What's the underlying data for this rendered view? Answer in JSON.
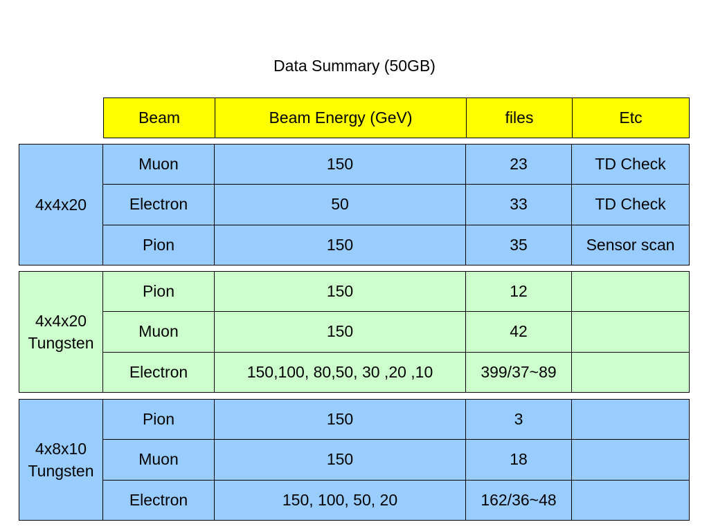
{
  "title": "Data Summary (50GB)",
  "header": [
    "Beam",
    "Beam Energy (GeV)",
    "files",
    "Etc"
  ],
  "groups": [
    {
      "label": [
        "4x4x20"
      ],
      "color": "#99ccff",
      "rows": [
        {
          "beam": "Muon",
          "energy": "150",
          "files": "23",
          "etc": "TD Check"
        },
        {
          "beam": "Electron",
          "energy": "50",
          "files": "33",
          "etc": "TD Check"
        },
        {
          "beam": "Pion",
          "energy": "150",
          "files": "35",
          "etc": "Sensor scan"
        }
      ]
    },
    {
      "label": [
        "4x4x20",
        "Tungsten"
      ],
      "color": "#ccffcc",
      "rows": [
        {
          "beam": "Pion",
          "energy": "150",
          "files": "12",
          "etc": ""
        },
        {
          "beam": "Muon",
          "energy": "150",
          "files": "42",
          "etc": ""
        },
        {
          "beam": "Electron",
          "energy": "150,100, 80,50, 30 ,20 ,10",
          "files": "399/37~89",
          "etc": ""
        }
      ]
    },
    {
      "label": [
        "4x8x10",
        "Tungsten"
      ],
      "color": "#99ccff",
      "rows": [
        {
          "beam": "Pion",
          "energy": "150",
          "files": "3",
          "etc": ""
        },
        {
          "beam": "Muon",
          "energy": "150",
          "files": "18",
          "etc": ""
        },
        {
          "beam": "Electron",
          "energy": "150, 100, 50, 20",
          "files": "162/36~48",
          "etc": ""
        }
      ]
    }
  ]
}
